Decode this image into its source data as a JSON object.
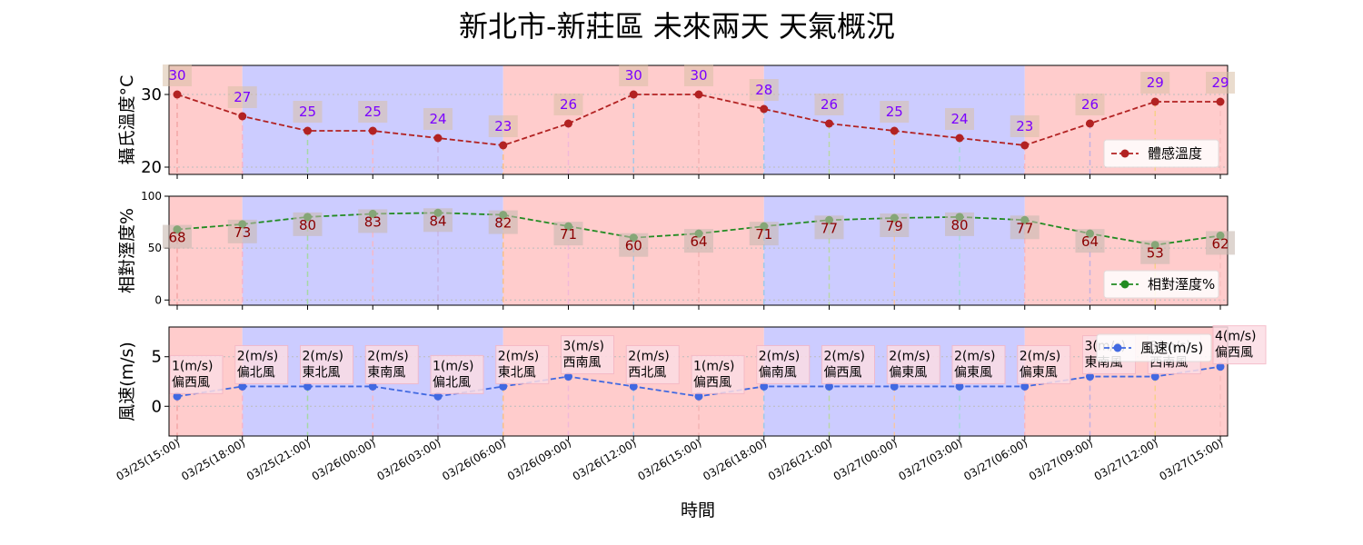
{
  "title": "新北市-新莊區 未來兩天 天氣概況",
  "xlabel": "時間",
  "x": [
    "03/25(15:00)",
    "03/25(18:00)",
    "03/25(21:00)",
    "03/26(00:00)",
    "03/26(03:00)",
    "03/26(06:00)",
    "03/26(09:00)",
    "03/26(12:00)",
    "03/26(15:00)",
    "03/26(18:00)",
    "03/26(21:00)",
    "03/27(00:00)",
    "03/27(03:00)",
    "03/27(06:00)",
    "03/27(09:00)",
    "03/27(12:00)",
    "03/27(15:00)"
  ],
  "day_night_bands": [
    {
      "from": "03/25(15:00)",
      "to": "03/25(18:00)",
      "period": "day"
    },
    {
      "from": "03/25(18:00)",
      "to": "03/26(06:00)",
      "period": "night"
    },
    {
      "from": "03/26(06:00)",
      "to": "03/26(18:00)",
      "period": "day"
    },
    {
      "from": "03/26(18:00)",
      "to": "03/27(06:00)",
      "period": "night"
    },
    {
      "from": "03/27(06:00)",
      "to": "03/27(15:00)",
      "period": "day"
    }
  ],
  "colors": {
    "day_band": "#ffcccc",
    "night_band": "#ccccff",
    "temp_line": "#b22222",
    "humidity_line": "#228b22",
    "wind_line": "#4169e1",
    "temp_label": "#7b00ff",
    "humidity_label": "#8b0000",
    "wind_label": "#000000"
  },
  "chart_data": [
    {
      "type": "line",
      "ylabel": "攝氏溫度°C",
      "yticks": [
        20,
        30
      ],
      "ylim": [
        19,
        34
      ],
      "series": [
        {
          "name": "體感溫度",
          "values": [
            30,
            27,
            25,
            25,
            24,
            23,
            26,
            30,
            30,
            28,
            26,
            25,
            24,
            23,
            26,
            29,
            29
          ]
        }
      ],
      "legend": "bottom-right"
    },
    {
      "type": "line",
      "ylabel": "相對溼度%",
      "yticks": [
        0,
        50,
        100
      ],
      "ylim": [
        -5,
        100
      ],
      "series": [
        {
          "name": "相對溼度%",
          "values": [
            68,
            73,
            80,
            83,
            84,
            82,
            71,
            60,
            64,
            71,
            77,
            79,
            80,
            77,
            64,
            53,
            62
          ]
        }
      ],
      "legend": "bottom-right"
    },
    {
      "type": "line",
      "ylabel": "風速(m/s)",
      "yticks": [
        0,
        5
      ],
      "ylim": [
        -3,
        8
      ],
      "series": [
        {
          "name": "風速(m/s)",
          "values": [
            1,
            2,
            2,
            2,
            1,
            2,
            3,
            2,
            1,
            2,
            2,
            2,
            2,
            2,
            3,
            3,
            4
          ]
        }
      ],
      "wind_dir": [
        "偏西風",
        "偏北風",
        "東北風",
        "東南風",
        "偏北風",
        "東北風",
        "西南風",
        "西北風",
        "偏西風",
        "偏南風",
        "偏西風",
        "偏東風",
        "偏東風",
        "偏東風",
        "東南風",
        "西南風",
        "偏西風"
      ],
      "legend": "top-right"
    }
  ]
}
